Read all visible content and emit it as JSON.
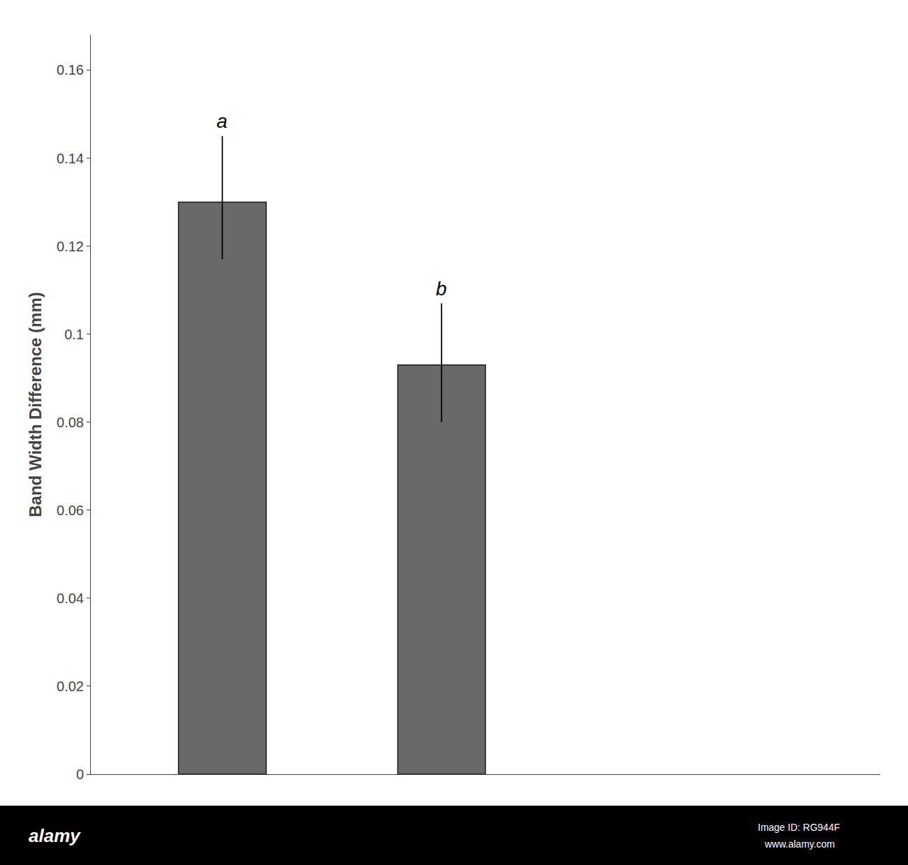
{
  "chart_data": {
    "type": "bar",
    "categories": [
      null,
      null
    ],
    "values": [
      0.13,
      0.093
    ],
    "errors_up": [
      0.015,
      0.014
    ],
    "errors_down": [
      0.013,
      0.013
    ],
    "color": "#696969",
    "bar_labels": [
      "a",
      "b"
    ],
    "ylabel": "Band Width Difference (mm)",
    "ylim": [
      0,
      0.168
    ],
    "yticks": [
      0,
      0.02,
      0.04,
      0.06,
      0.08,
      0.1,
      0.12,
      0.14,
      0.16
    ],
    "grid": false,
    "annotations": [
      "alamy",
      "Image ID: RG944F",
      "www.alamy.com"
    ]
  }
}
